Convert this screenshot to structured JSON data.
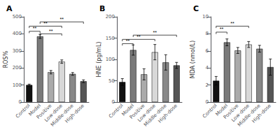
{
  "chart_data": [
    {
      "type": "bar",
      "title": "A",
      "ylabel": "ROS%",
      "categories": [
        "Control",
        "Model",
        "Positive",
        "Low-dose",
        "Middle-dose",
        "High-dose"
      ],
      "values": [
        100,
        385,
        175,
        237,
        165,
        122
      ],
      "errors": [
        5,
        12,
        10,
        10,
        8,
        8
      ],
      "colors": [
        "#111111",
        "#7a7a7a",
        "#aaaaaa",
        "#d8d8d8",
        "#888888",
        "#555555"
      ],
      "ylim": [
        0,
        500
      ],
      "yticks": [
        0,
        100,
        200,
        300,
        400,
        500
      ],
      "grid": false,
      "annotations": [
        {
          "text": "**",
          "x1": "Control",
          "x2": "Model",
          "y": 415
        },
        {
          "text": "**",
          "x1": "Control",
          "x2": "Low-dose",
          "y": 445
        },
        {
          "text": "**",
          "x1": "Model",
          "x2": "Low-dose",
          "y": 400
        },
        {
          "text": "**",
          "x1": "Model",
          "x2": "High-dose",
          "y": 470
        }
      ]
    },
    {
      "type": "bar",
      "title": "B",
      "ylabel": "HNE (pg/mL)",
      "categories": [
        "Control",
        "Model",
        "Positive",
        "Low-dose",
        "Middle-dose",
        "High-dose"
      ],
      "values": [
        47,
        122,
        65,
        117,
        93,
        86
      ],
      "errors": [
        8,
        12,
        13,
        18,
        18,
        7
      ],
      "colors": [
        "#111111",
        "#7a7a7a",
        "#aaaaaa",
        "#d8d8d8",
        "#888888",
        "#555555"
      ],
      "ylim": [
        0,
        200
      ],
      "yticks": [
        0,
        50,
        100,
        150,
        200
      ],
      "grid": false,
      "annotations": [
        {
          "text": "**",
          "x1": "Control",
          "x2": "Model",
          "y": 137
        },
        {
          "text": "**",
          "x1": "Control",
          "x2": "Low-dose",
          "y": 147
        },
        {
          "text": "**",
          "x1": "Model",
          "x2": "High-dose",
          "y": 157
        }
      ]
    },
    {
      "type": "bar",
      "title": "C",
      "ylabel": "MDA (nmol/L)",
      "categories": [
        "Control",
        "Model",
        "Positive",
        "Low-dose",
        "Middle-dose",
        "High-dose"
      ],
      "values": [
        2.5,
        7.0,
        6.05,
        6.75,
        6.25,
        4.1
      ],
      "errors": [
        0.5,
        0.4,
        0.35,
        0.35,
        0.4,
        0.95
      ],
      "colors": [
        "#111111",
        "#7a7a7a",
        "#aaaaaa",
        "#d8d8d8",
        "#888888",
        "#555555"
      ],
      "ylim": [
        0,
        10
      ],
      "yticks": [
        0,
        2,
        4,
        6,
        8,
        10
      ],
      "grid": false,
      "annotations": [
        {
          "text": "**",
          "x1": "Control",
          "x2": "Model",
          "y": 8.2
        },
        {
          "text": "**",
          "x1": "Control",
          "x2": "Low-dose",
          "y": 8.9
        }
      ]
    }
  ]
}
